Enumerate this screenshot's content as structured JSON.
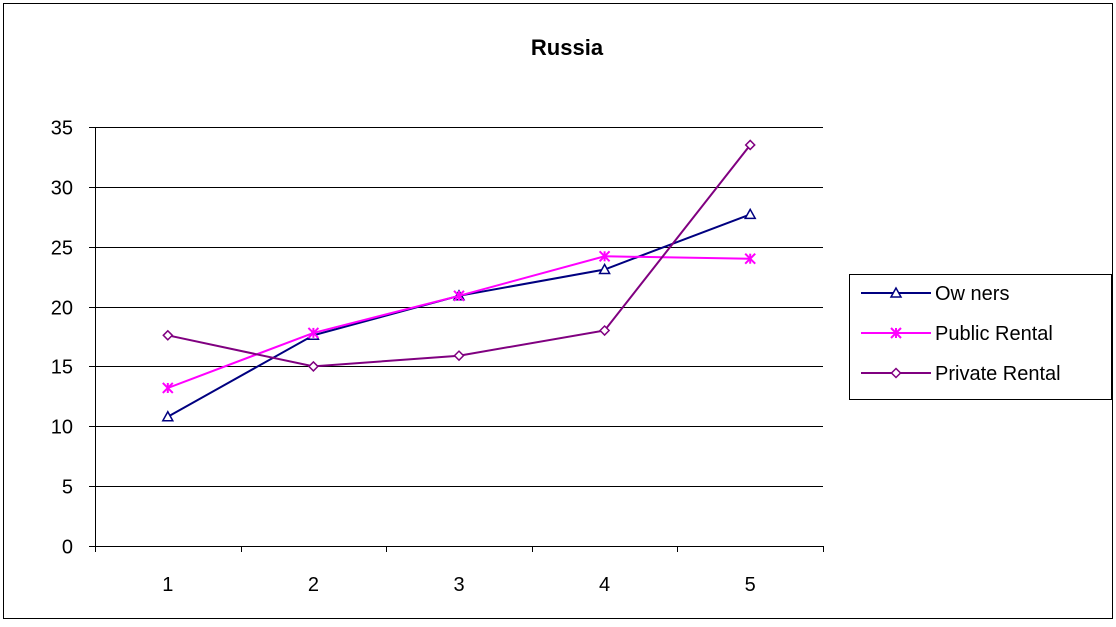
{
  "chart_data": {
    "type": "line",
    "title": "Russia",
    "xlabel": "",
    "ylabel": "",
    "categories": [
      "1",
      "2",
      "3",
      "4",
      "5"
    ],
    "ylim": [
      0,
      35
    ],
    "yticks": [
      "0",
      "5",
      "10",
      "15",
      "20",
      "25",
      "30",
      "35"
    ],
    "grid": true,
    "legend_position": "right",
    "series": [
      {
        "name": "Ow ners",
        "color": "#000080",
        "marker": "triangle",
        "values": [
          10.8,
          17.6,
          20.9,
          23.1,
          27.7
        ]
      },
      {
        "name": "Public Rental",
        "color": "#FF00FF",
        "marker": "asterisk",
        "values": [
          13.2,
          17.8,
          20.9,
          24.2,
          24.0
        ]
      },
      {
        "name": "Private Rental",
        "color": "#800080",
        "marker": "diamond",
        "values": [
          17.6,
          15.0,
          15.9,
          18.0,
          33.5
        ]
      }
    ]
  }
}
